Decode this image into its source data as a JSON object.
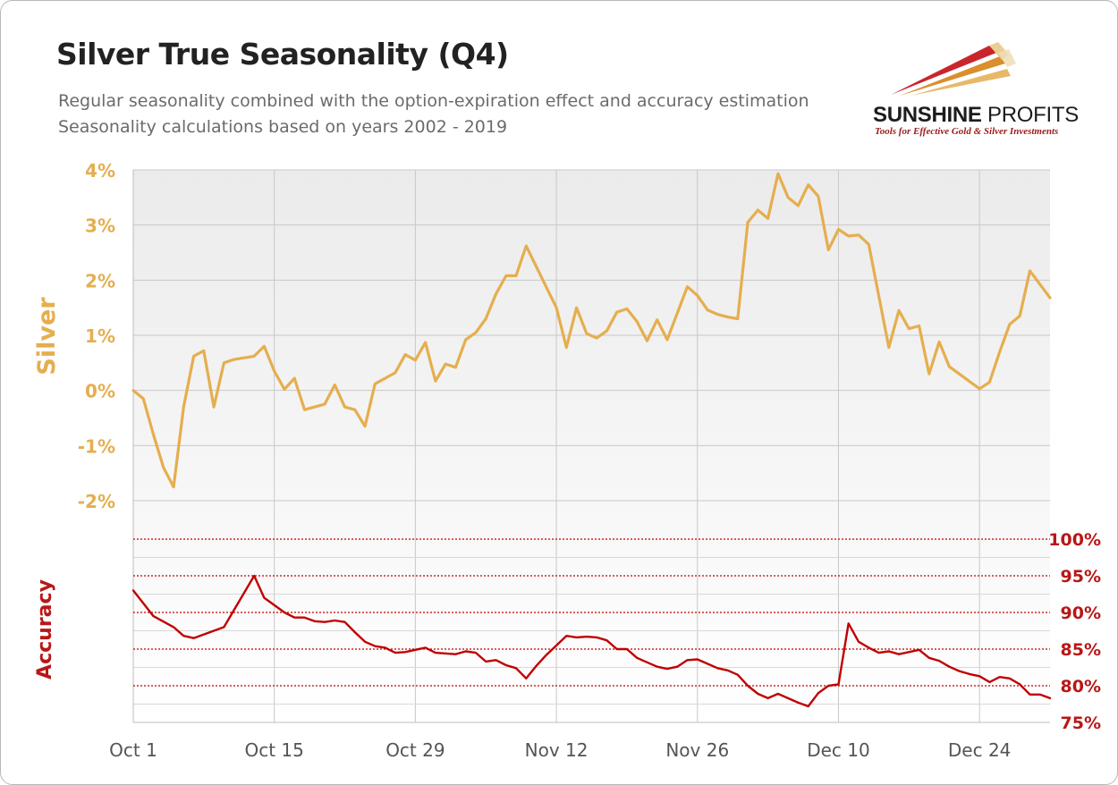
{
  "header": {
    "title": "Silver True Seasonality (Q4)",
    "subtitle_1": "Regular seasonality combined with the option-expiration effect and accuracy estimation",
    "subtitle_2": "Seasonality calculations based on years 2002 - 2019"
  },
  "logo": {
    "name_bold": "SUNSHINE",
    "name_light": "PROFITS",
    "tagline": "Tools for Effective Gold & Silver Investments"
  },
  "colors": {
    "silver_line": "#E5AE4E",
    "accuracy_line": "#C00000",
    "silver_axis_text": "#E5AE4E",
    "accuracy_axis_text": "#B81717",
    "plot_bg_top": "#EEEEEE",
    "grid": "#C8C8C8"
  },
  "chart_data": {
    "type": "line",
    "x_axis": {
      "range_days": [
        0,
        91
      ],
      "tick_days": [
        0,
        14,
        28,
        42,
        56,
        70,
        84
      ],
      "tick_labels": [
        "Oct 1",
        "Oct 15",
        "Oct 29",
        "Nov 12",
        "Nov 26",
        "Dec 10",
        "Dec 24"
      ]
    },
    "silver_axis": {
      "label": "Silver",
      "range": [
        -2.5,
        4
      ],
      "ticks": [
        4,
        3,
        2,
        1,
        0,
        -1,
        -2
      ],
      "tick_labels": [
        "4%",
        "3%",
        "2%",
        "1%",
        "0%",
        "-1%",
        "-2%"
      ]
    },
    "accuracy_axis": {
      "label": "Accuracy",
      "range": [
        75,
        100
      ],
      "ticks": [
        100,
        95,
        90,
        85,
        80,
        75
      ],
      "tick_labels": [
        "100%",
        "95%",
        "90%",
        "85%",
        "80%",
        "75%"
      ]
    },
    "series": [
      {
        "name": "Silver",
        "axis": "silver",
        "points": [
          [
            0,
            0.0
          ],
          [
            1,
            -0.15
          ],
          [
            2,
            -0.8
          ],
          [
            3,
            -1.4
          ],
          [
            4,
            -1.75
          ],
          [
            5,
            -0.3
          ],
          [
            6,
            0.62
          ],
          [
            7,
            0.72
          ],
          [
            8,
            -0.3
          ],
          [
            9,
            0.5
          ],
          [
            10,
            0.56
          ],
          [
            12,
            0.62
          ],
          [
            13,
            0.8
          ],
          [
            14,
            0.35
          ],
          [
            15,
            0.02
          ],
          [
            16,
            0.22
          ],
          [
            17,
            -0.35
          ],
          [
            18,
            -0.3
          ],
          [
            19,
            -0.25
          ],
          [
            20,
            0.1
          ],
          [
            21,
            -0.3
          ],
          [
            22,
            -0.35
          ],
          [
            23,
            -0.65
          ],
          [
            24,
            0.12
          ],
          [
            25,
            0.22
          ],
          [
            26,
            0.32
          ],
          [
            27,
            0.65
          ],
          [
            28,
            0.55
          ],
          [
            29,
            0.87
          ],
          [
            30,
            0.17
          ],
          [
            31,
            0.48
          ],
          [
            32,
            0.42
          ],
          [
            33,
            0.92
          ],
          [
            34,
            1.05
          ],
          [
            35,
            1.3
          ],
          [
            36,
            1.75
          ],
          [
            37,
            2.08
          ],
          [
            38,
            2.08
          ],
          [
            39,
            2.62
          ],
          [
            42,
            1.5
          ],
          [
            43,
            0.78
          ],
          [
            44,
            1.5
          ],
          [
            45,
            1.03
          ],
          [
            46,
            0.95
          ],
          [
            47,
            1.08
          ],
          [
            48,
            1.42
          ],
          [
            49,
            1.48
          ],
          [
            50,
            1.25
          ],
          [
            51,
            0.9
          ],
          [
            52,
            1.28
          ],
          [
            53,
            0.92
          ],
          [
            55,
            1.88
          ],
          [
            56,
            1.72
          ],
          [
            57,
            1.46
          ],
          [
            58,
            1.38
          ],
          [
            59,
            1.33
          ],
          [
            60,
            1.3
          ],
          [
            61,
            3.05
          ],
          [
            62,
            3.27
          ],
          [
            63,
            3.12
          ],
          [
            64,
            3.93
          ],
          [
            65,
            3.5
          ],
          [
            66,
            3.35
          ],
          [
            67,
            3.73
          ],
          [
            68,
            3.52
          ],
          [
            69,
            2.55
          ],
          [
            70,
            2.92
          ],
          [
            71,
            2.8
          ],
          [
            72,
            2.82
          ],
          [
            73,
            2.65
          ],
          [
            75,
            0.78
          ],
          [
            76,
            1.45
          ],
          [
            77,
            1.12
          ],
          [
            78,
            1.17
          ],
          [
            79,
            0.3
          ],
          [
            80,
            0.88
          ],
          [
            81,
            0.43
          ],
          [
            84,
            0.03
          ],
          [
            85,
            0.15
          ],
          [
            86,
            0.7
          ],
          [
            87,
            1.2
          ],
          [
            88,
            1.35
          ],
          [
            89,
            2.17
          ],
          [
            91,
            1.68
          ]
        ]
      },
      {
        "name": "Accuracy",
        "axis": "accuracy",
        "points": [
          [
            0,
            93.0
          ],
          [
            2,
            89.5
          ],
          [
            4,
            88.0
          ],
          [
            5,
            86.8
          ],
          [
            6,
            86.5
          ],
          [
            9,
            88.0
          ],
          [
            12,
            95.0
          ],
          [
            13,
            92.0
          ],
          [
            15,
            90.0
          ],
          [
            16,
            89.3
          ],
          [
            17,
            89.3
          ],
          [
            18,
            88.8
          ],
          [
            19,
            88.7
          ],
          [
            20,
            88.9
          ],
          [
            21,
            88.7
          ],
          [
            22,
            87.3
          ],
          [
            23,
            86.0
          ],
          [
            24,
            85.4
          ],
          [
            25,
            85.2
          ],
          [
            26,
            84.5
          ],
          [
            27,
            84.6
          ],
          [
            28,
            84.9
          ],
          [
            29,
            85.2
          ],
          [
            30,
            84.5
          ],
          [
            32,
            84.3
          ],
          [
            33,
            84.7
          ],
          [
            34,
            84.5
          ],
          [
            35,
            83.3
          ],
          [
            36,
            83.5
          ],
          [
            37,
            82.8
          ],
          [
            38,
            82.4
          ],
          [
            39,
            81.0
          ],
          [
            40,
            82.7
          ],
          [
            41,
            84.2
          ],
          [
            43,
            86.8
          ],
          [
            44,
            86.6
          ],
          [
            45,
            86.7
          ],
          [
            46,
            86.6
          ],
          [
            47,
            86.2
          ],
          [
            48,
            85.0
          ],
          [
            49,
            85.0
          ],
          [
            50,
            83.8
          ],
          [
            51,
            83.2
          ],
          [
            52,
            82.6
          ],
          [
            53,
            82.3
          ],
          [
            54,
            82.6
          ],
          [
            55,
            83.5
          ],
          [
            56,
            83.6
          ],
          [
            57,
            83.0
          ],
          [
            58,
            82.4
          ],
          [
            59,
            82.1
          ],
          [
            60,
            81.5
          ],
          [
            61,
            80.0
          ],
          [
            62,
            78.9
          ],
          [
            63,
            78.3
          ],
          [
            64,
            78.9
          ],
          [
            66,
            77.7
          ],
          [
            67,
            77.2
          ],
          [
            68,
            79.0
          ],
          [
            69,
            80.0
          ],
          [
            70,
            80.2
          ],
          [
            71,
            88.5
          ],
          [
            72,
            86.0
          ],
          [
            73,
            85.2
          ],
          [
            74,
            84.5
          ],
          [
            75,
            84.7
          ],
          [
            76,
            84.3
          ],
          [
            77,
            84.6
          ],
          [
            78,
            84.9
          ],
          [
            79,
            83.8
          ],
          [
            80,
            83.4
          ],
          [
            81,
            82.6
          ],
          [
            82,
            82.0
          ],
          [
            83,
            81.6
          ],
          [
            84,
            81.3
          ],
          [
            85,
            80.5
          ],
          [
            86,
            81.2
          ],
          [
            87,
            81.0
          ],
          [
            88,
            80.2
          ],
          [
            89,
            78.8
          ],
          [
            90,
            78.8
          ],
          [
            91,
            78.3
          ]
        ]
      }
    ],
    "grid": true,
    "legend": "none"
  }
}
